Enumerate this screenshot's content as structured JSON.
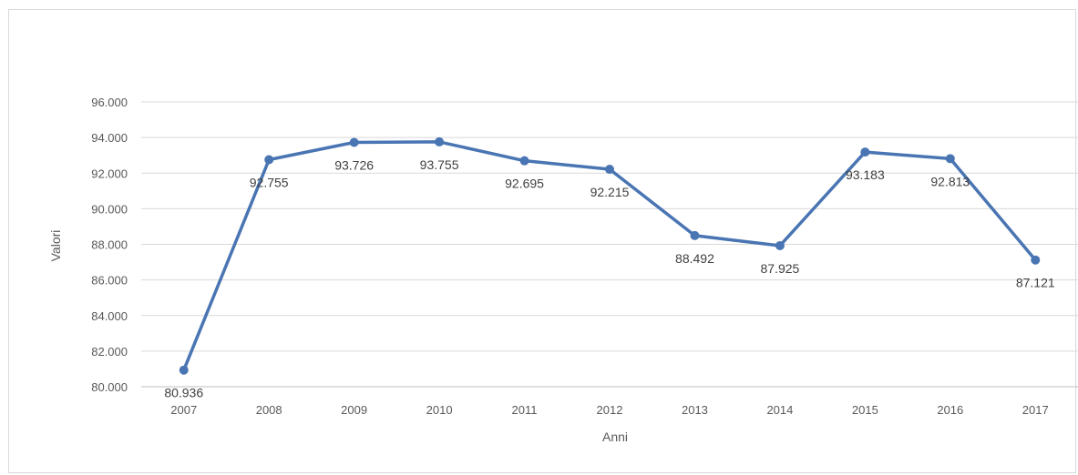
{
  "chart_data": {
    "type": "line",
    "title": "",
    "xlabel": "Anni",
    "ylabel": "Valori",
    "categories": [
      "2007",
      "2008",
      "2009",
      "2010",
      "2011",
      "2012",
      "2013",
      "2014",
      "2015",
      "2016",
      "2017"
    ],
    "series": [
      {
        "values": [
          80936,
          92755,
          93726,
          93755,
          92695,
          92215,
          88492,
          87925,
          93183,
          92813,
          87121
        ],
        "labels": [
          "80.936",
          "92.755",
          "93.726",
          "93.755",
          "92.695",
          "92.215",
          "88.492",
          "87.925",
          "93.183",
          "92.813",
          "87.121"
        ],
        "color": "#4a75b3"
      }
    ],
    "ylim": [
      80000,
      96000
    ],
    "yticks": [
      80000,
      82000,
      84000,
      86000,
      88000,
      90000,
      92000,
      94000,
      96000
    ],
    "ytick_labels": [
      "80.000",
      "82.000",
      "84.000",
      "86.000",
      "88.000",
      "90.000",
      "92.000",
      "94.000",
      "96.000"
    ],
    "grid": true,
    "legend": "none"
  }
}
